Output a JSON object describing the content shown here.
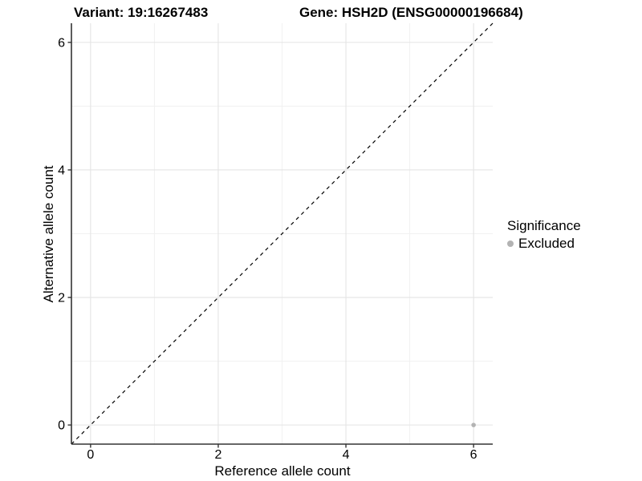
{
  "header": {
    "variant_title": "Variant: 19:16267483",
    "gene_title": "Gene: HSH2D (ENSG00000196684)"
  },
  "legend": {
    "title": "Significance",
    "items": [
      {
        "label": "Excluded",
        "color": "#b3b3b3"
      }
    ]
  },
  "colors": {
    "background": "#ffffff",
    "grid_major": "#e4e4e4",
    "grid_minor": "#f1f1f1",
    "axis_line": "#333333",
    "tick_label": "#000000",
    "identity_line": "#000000",
    "point": "#b3b3b3"
  },
  "chart_data": {
    "type": "scatter",
    "title": "",
    "xlabel": "Reference allele count",
    "ylabel": "Alternative allele count",
    "xlim": [
      -0.3,
      6.3
    ],
    "ylim": [
      -0.3,
      6.3
    ],
    "xticks": [
      0,
      2,
      4,
      6
    ],
    "yticks": [
      0,
      2,
      4,
      6
    ],
    "minor_ticks": [
      1,
      3,
      5
    ],
    "grid": true,
    "legend_position": "right",
    "identity_line": {
      "style": "dashed",
      "from": -0.3,
      "to": 6.3
    },
    "series": [
      {
        "name": "Excluded",
        "color": "#b3b3b3",
        "points": [
          {
            "x": 6,
            "y": 0
          }
        ]
      }
    ]
  }
}
